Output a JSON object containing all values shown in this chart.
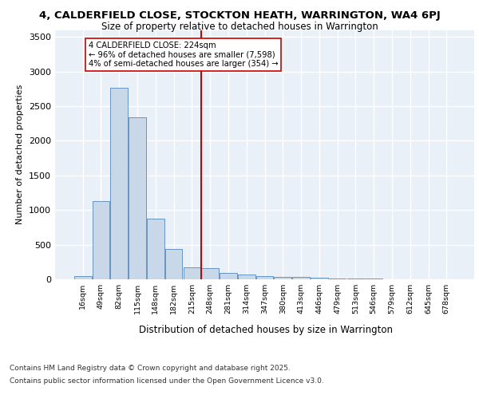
{
  "title_line1": "4, CALDERFIELD CLOSE, STOCKTON HEATH, WARRINGTON, WA4 6PJ",
  "title_line2": "Size of property relative to detached houses in Warrington",
  "xlabel": "Distribution of detached houses by size in Warrington",
  "ylabel": "Number of detached properties",
  "categories": [
    "16sqm",
    "49sqm",
    "82sqm",
    "115sqm",
    "148sqm",
    "182sqm",
    "215sqm",
    "248sqm",
    "281sqm",
    "314sqm",
    "347sqm",
    "380sqm",
    "413sqm",
    "446sqm",
    "479sqm",
    "513sqm",
    "546sqm",
    "579sqm",
    "612sqm",
    "645sqm",
    "678sqm"
  ],
  "values": [
    50,
    1130,
    2760,
    2340,
    870,
    440,
    170,
    165,
    95,
    65,
    50,
    40,
    30,
    22,
    15,
    10,
    8,
    5,
    4,
    3,
    2
  ],
  "bar_color": "#c8d8e8",
  "bar_edge_color": "#5588bb",
  "vline_x_idx": 6.5,
  "vline_color": "#cc0000",
  "annotation_text": "4 CALDERFIELD CLOSE: 224sqm\n← 96% of detached houses are smaller (7,598)\n4% of semi-detached houses are larger (354) →",
  "annotation_box_color": "#ffffff",
  "annotation_box_edge": "#cc0000",
  "ylim": [
    0,
    3600
  ],
  "yticks": [
    0,
    500,
    1000,
    1500,
    2000,
    2500,
    3000,
    3500
  ],
  "background_color": "#eaf0f8",
  "grid_color": "#ffffff",
  "footer_line1": "Contains HM Land Registry data © Crown copyright and database right 2025.",
  "footer_line2": "Contains public sector information licensed under the Open Government Licence v3.0."
}
